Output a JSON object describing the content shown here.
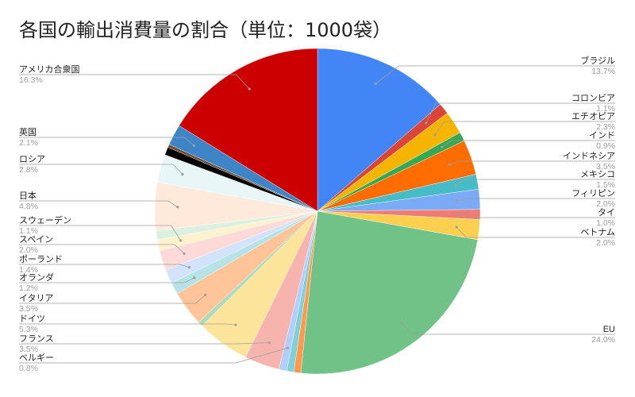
{
  "chart_data": {
    "type": "pie",
    "title": "各国の輸出消費量の割合（単位：1000袋）",
    "start_angle_deg": 0,
    "direction": "clockwise",
    "slices": [
      {
        "label": "ブラジル",
        "percent": 13.7,
        "value_label": "13.7%",
        "color": "#4285f4"
      },
      {
        "label": "コロンビア",
        "percent": 1.1,
        "value_label": "1.1%",
        "color": "#db4437"
      },
      {
        "label": "エチオピア",
        "percent": 2.3,
        "value_label": "2.3%",
        "color": "#f4b400"
      },
      {
        "label": "インド",
        "percent": 0.9,
        "value_label": "0.9%",
        "color": "#34a853"
      },
      {
        "label": "インドネシア",
        "percent": 3.5,
        "value_label": "3.5%",
        "color": "#ff6d01"
      },
      {
        "label": "メキシコ",
        "percent": 1.5,
        "value_label": "1.5%",
        "color": "#46bdc6"
      },
      {
        "label": "フィリピン",
        "percent": 2.0,
        "value_label": "2.0%",
        "color": "#7baaf7"
      },
      {
        "label": "タイ",
        "percent": 1.0,
        "value_label": "1.0%",
        "color": "#f07b72"
      },
      {
        "label": "ベトナム",
        "percent": 2.0,
        "value_label": "2.0%",
        "color": "#fcd04f"
      },
      {
        "label": "EU",
        "percent": 24.0,
        "value_label": "24.0%",
        "color": "#71c287"
      },
      {
        "label": "",
        "percent": 0.7,
        "value_label": "",
        "color": "#ff994d"
      },
      {
        "label": "",
        "percent": 0.7,
        "value_label": "",
        "color": "#7ed1d7"
      },
      {
        "label": "ベルギー",
        "percent": 0.8,
        "value_label": "0.8%",
        "color": "#b3cefb"
      },
      {
        "label": "フランス",
        "percent": 3.5,
        "value_label": "3.5%",
        "color": "#f7b4ae"
      },
      {
        "label": "ドイツ",
        "percent": 5.3,
        "value_label": "5.3%",
        "color": "#fde49b"
      },
      {
        "label": "",
        "percent": 0.5,
        "value_label": "",
        "color": "#aedcba"
      },
      {
        "label": "イタリア",
        "percent": 3.5,
        "value_label": "3.5%",
        "color": "#ffc599"
      },
      {
        "label": "オランダ",
        "percent": 1.2,
        "value_label": "1.2%",
        "color": "#b5e3e6"
      },
      {
        "label": "ポーランド",
        "percent": 1.4,
        "value_label": "1.4%",
        "color": "#d3e3fc"
      },
      {
        "label": "スペイン",
        "percent": 2.0,
        "value_label": "2.0%",
        "color": "#fbdad7"
      },
      {
        "label": "スウェーデン",
        "percent": 1.1,
        "value_label": "1.1%",
        "color": "#fef2cd"
      },
      {
        "label": "",
        "percent": 0.9,
        "value_label": "",
        "color": "#dcf0e1"
      },
      {
        "label": "日本",
        "percent": 4.8,
        "value_label": "4.8%",
        "color": "#ffe9da"
      },
      {
        "label": "ロシア",
        "percent": 2.8,
        "value_label": "2.8%",
        "color": "#e8f6f7"
      },
      {
        "label": "",
        "percent": 0.8,
        "value_label": "",
        "color": "#000000"
      },
      {
        "label": "",
        "percent": 0.3,
        "value_label": "",
        "color": "#6b4a2f"
      },
      {
        "label": "英国",
        "percent": 2.1,
        "value_label": "2.1%",
        "color": "#3d85c6"
      },
      {
        "label": "アメリカ合衆国",
        "percent": 16.3,
        "value_label": "16.3%",
        "color": "#cc0000"
      }
    ]
  }
}
